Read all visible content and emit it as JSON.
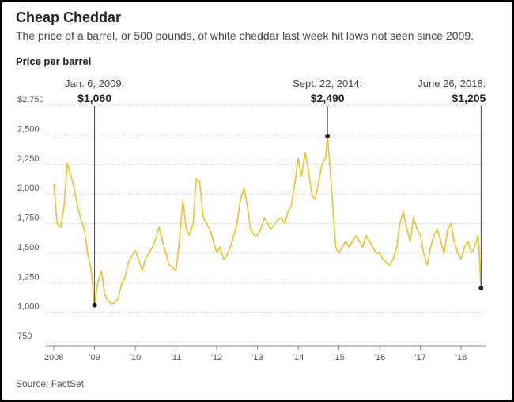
{
  "chart_data": {
    "type": "line",
    "title": "Cheap Cheddar",
    "subtitle": "The price of a barrel, or 500 pounds, of white cheddar last week hit lows not seen since 2009.",
    "y_label": "Price per barrel",
    "source": "Source: FactSet",
    "xlim": [
      2007.94,
      2018.6
    ],
    "ylim": [
      750,
      2750
    ],
    "grid": true,
    "xticks": [
      2008,
      {
        "value": 2009,
        "label": "'09"
      },
      {
        "value": 2010,
        "label": "'10"
      },
      {
        "value": 2011,
        "label": "'11"
      },
      {
        "value": 2012,
        "label": "'12"
      },
      {
        "value": 2013,
        "label": "'13"
      },
      {
        "value": 2014,
        "label": "'14"
      },
      {
        "value": 2015,
        "label": "'15"
      },
      {
        "value": 2016,
        "label": "'16"
      },
      {
        "value": 2017,
        "label": "'17"
      },
      {
        "value": 2018,
        "label": "'18"
      }
    ],
    "yticks": [
      {
        "value": 750,
        "label": "750"
      },
      {
        "value": 1000,
        "label": "1,000"
      },
      {
        "value": 1250,
        "label": "1,250"
      },
      {
        "value": 1500,
        "label": "1,500"
      },
      {
        "value": 1750,
        "label": "1,750"
      },
      {
        "value": 2000,
        "label": "2,000"
      },
      {
        "value": 2250,
        "label": "2,250"
      },
      {
        "value": 2500,
        "label": "2,500"
      },
      {
        "value": 2750,
        "label": "$2,750"
      }
    ],
    "x": [
      2008,
      2008.08,
      2008.17,
      2008.25,
      2008.33,
      2008.42,
      2008.5,
      2008.58,
      2008.67,
      2008.75,
      2008.83,
      2008.92,
      2009,
      2009.08,
      2009.17,
      2009.25,
      2009.33,
      2009.42,
      2009.5,
      2009.58,
      2009.67,
      2009.75,
      2009.83,
      2009.92,
      2010,
      2010.08,
      2010.17,
      2010.25,
      2010.33,
      2010.42,
      2010.5,
      2010.58,
      2010.67,
      2010.75,
      2010.83,
      2010.92,
      2011,
      2011.08,
      2011.17,
      2011.25,
      2011.33,
      2011.42,
      2011.5,
      2011.58,
      2011.67,
      2011.75,
      2011.83,
      2011.92,
      2012,
      2012.08,
      2012.17,
      2012.25,
      2012.33,
      2012.42,
      2012.5,
      2012.58,
      2012.67,
      2012.75,
      2012.83,
      2012.92,
      2013,
      2013.08,
      2013.17,
      2013.25,
      2013.33,
      2013.42,
      2013.5,
      2013.58,
      2013.67,
      2013.75,
      2013.83,
      2013.92,
      2014,
      2014.08,
      2014.17,
      2014.25,
      2014.33,
      2014.42,
      2014.5,
      2014.58,
      2014.67,
      2014.72,
      2014.83,
      2014.92,
      2015,
      2015.08,
      2015.17,
      2015.25,
      2015.33,
      2015.42,
      2015.5,
      2015.58,
      2015.67,
      2015.75,
      2015.83,
      2015.92,
      2016,
      2016.08,
      2016.17,
      2016.25,
      2016.33,
      2016.42,
      2016.5,
      2016.58,
      2016.67,
      2016.75,
      2016.83,
      2016.92,
      2017,
      2017.08,
      2017.17,
      2017.25,
      2017.33,
      2017.42,
      2017.5,
      2017.58,
      2017.67,
      2017.75,
      2017.83,
      2017.92,
      2018,
      2018.08,
      2018.17,
      2018.25,
      2018.33,
      2018.42,
      2018.49
    ],
    "series": [
      {
        "color": "#e6c33a",
        "values": [
          2090,
          1750,
          1720,
          1900,
          2260,
          2150,
          2050,
          1900,
          1780,
          1700,
          1500,
          1350,
          1060,
          1250,
          1350,
          1150,
          1100,
          1070,
          1080,
          1120,
          1250,
          1300,
          1420,
          1480,
          1520,
          1450,
          1350,
          1450,
          1500,
          1550,
          1620,
          1720,
          1600,
          1500,
          1400,
          1380,
          1350,
          1600,
          1950,
          1700,
          1650,
          1750,
          2130,
          2100,
          1800,
          1750,
          1700,
          1600,
          1500,
          1550,
          1450,
          1480,
          1550,
          1650,
          1750,
          1950,
          2050,
          1900,
          1700,
          1650,
          1650,
          1700,
          1800,
          1750,
          1700,
          1750,
          1780,
          1800,
          1750,
          1850,
          1900,
          2100,
          2300,
          2150,
          2350,
          2200,
          2000,
          1950,
          2100,
          2250,
          2300,
          2490,
          2000,
          1550,
          1500,
          1550,
          1600,
          1550,
          1600,
          1650,
          1600,
          1550,
          1650,
          1600,
          1550,
          1500,
          1500,
          1450,
          1420,
          1400,
          1450,
          1550,
          1750,
          1850,
          1700,
          1600,
          1800,
          1700,
          1650,
          1500,
          1400,
          1550,
          1650,
          1700,
          1600,
          1500,
          1700,
          1750,
          1600,
          1500,
          1450,
          1550,
          1600,
          1500,
          1550,
          1650,
          1205
        ]
      }
    ],
    "annotations": [
      {
        "date": "Jan. 6, 2009:",
        "label": "$1,060",
        "x": 2009,
        "value": 1060,
        "align": "middle"
      },
      {
        "date": "Sept. 22, 2014:",
        "label": "$2,490",
        "x": 2014.72,
        "value": 2490,
        "align": "middle"
      },
      {
        "date": "June 26, 2018:",
        "label": "$1,205",
        "x": 2018.49,
        "value": 1205,
        "align": "end"
      }
    ]
  }
}
